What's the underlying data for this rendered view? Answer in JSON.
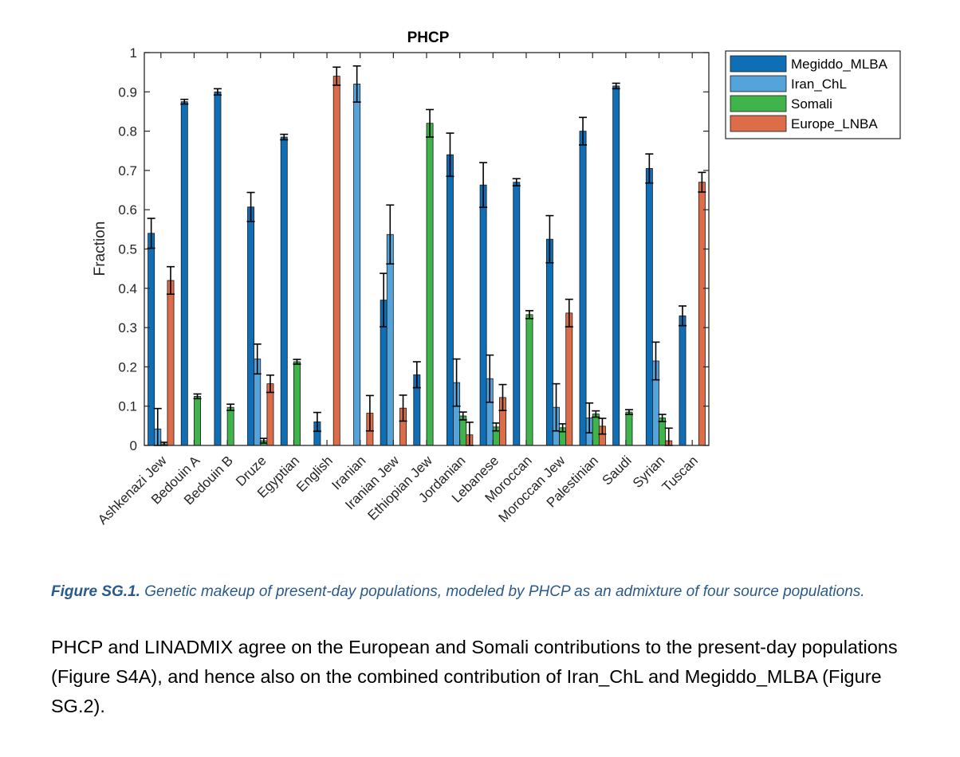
{
  "colors": {
    "Megiddo_MLBA": "#0f6fb6",
    "Iran_ChL": "#54a3da",
    "Somali": "#3fb44a",
    "Europe_LNBA": "#dd6d48",
    "caption": "#2a5a8c"
  },
  "chart_data": {
    "type": "bar",
    "title": "PHCP",
    "xlabel": "",
    "ylabel": "Fraction",
    "ylim": [
      0,
      1
    ],
    "yticks": [
      "0",
      "0.1",
      "0.2",
      "0.3",
      "0.4",
      "0.5",
      "0.6",
      "0.7",
      "0.8",
      "0.9",
      "1"
    ],
    "legend_position": "outside-top-right",
    "error_bars": true,
    "categories": [
      "Ashkenazi Jew",
      "Bedouin A",
      "Bedouin B",
      "Druze",
      "Egyptian",
      "English",
      "Iranian",
      "Iranian Jew",
      "Ethiopian Jew",
      "Jordanian",
      "Lebanese",
      "Moroccan",
      "Moroccan Jew",
      "Palestinian",
      "Saudi",
      "Syrian",
      "Tuscan"
    ],
    "series": [
      {
        "name": "Megiddo_MLBA",
        "values": [
          0.54,
          0.875,
          0.9,
          0.607,
          0.785,
          0.06,
          0.0,
          0.37,
          0.18,
          0.74,
          0.663,
          0.67,
          0.525,
          0.8,
          0.915,
          0.705,
          0.33
        ],
        "errors": [
          0.038,
          0.006,
          0.008,
          0.037,
          0.007,
          0.024,
          0.0,
          0.068,
          0.033,
          0.055,
          0.057,
          0.009,
          0.06,
          0.035,
          0.007,
          0.037,
          0.025
        ]
      },
      {
        "name": "Iran_ChL",
        "values": [
          0.042,
          0.0,
          0.0,
          0.22,
          0.0,
          0.0,
          0.92,
          0.537,
          0.0,
          0.16,
          0.17,
          0.0,
          0.097,
          0.07,
          0.0,
          0.215,
          0.0
        ],
        "errors": [
          0.052,
          0.0,
          0.0,
          0.038,
          0.0,
          0.0,
          0.046,
          0.075,
          0.0,
          0.06,
          0.06,
          0.0,
          0.06,
          0.038,
          0.0,
          0.048,
          0.0
        ]
      },
      {
        "name": "Somali",
        "values": [
          0.004,
          0.125,
          0.097,
          0.012,
          0.213,
          0.0,
          0.0,
          0.0,
          0.82,
          0.075,
          0.047,
          0.333,
          0.045,
          0.08,
          0.085,
          0.07,
          0.0
        ],
        "errors": [
          0.004,
          0.006,
          0.008,
          0.006,
          0.006,
          0.0,
          0.0,
          0.0,
          0.035,
          0.01,
          0.01,
          0.01,
          0.01,
          0.008,
          0.006,
          0.009,
          0.0
        ],
        "error_caps_only_top": true
      },
      {
        "name": "Europe_LNBA",
        "values": [
          0.42,
          0.0,
          0.0,
          0.157,
          0.0,
          0.94,
          0.082,
          0.095,
          0.0,
          0.027,
          0.122,
          0.0,
          0.337,
          0.049,
          0.0,
          0.012,
          0.67
        ],
        "errors": [
          0.035,
          0.0,
          0.0,
          0.022,
          0.0,
          0.023,
          0.045,
          0.033,
          0.0,
          0.032,
          0.033,
          0.0,
          0.035,
          0.02,
          0.0,
          0.032,
          0.025
        ]
      }
    ]
  },
  "caption": {
    "label": "Figure SG.1",
    "label_suffix": ".",
    "text": " Genetic makeup of present-day populations, modeled by PHCP as an admixture of four source populations."
  },
  "body_text": "PHCP and LINADMIX agree on the European and Somali contributions to the present-day populations (Figure S4A), and hence also on the combined contribution of Iran_ChL and Megiddo_MLBA (Figure SG.2)."
}
